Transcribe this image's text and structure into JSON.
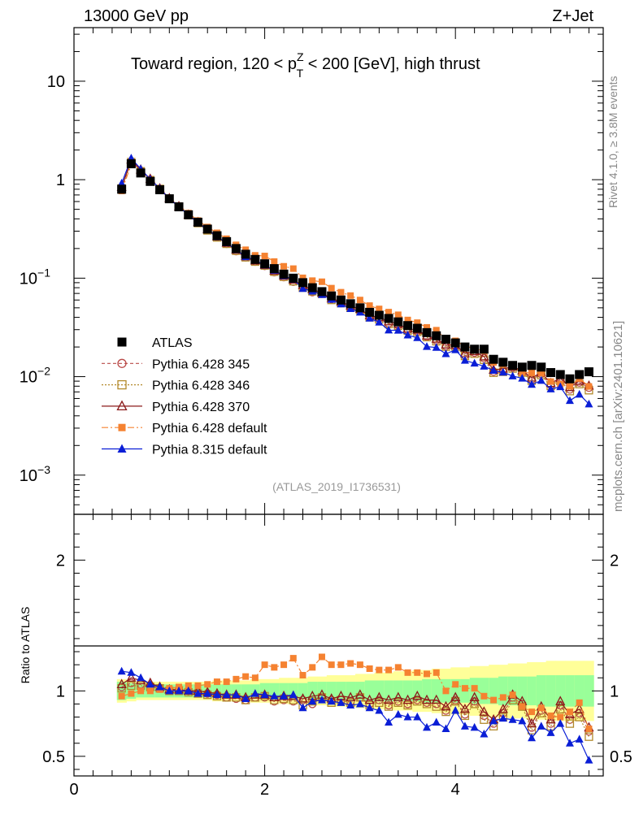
{
  "header": {
    "left": "13000 GeV pp",
    "right": "Z+Jet"
  },
  "title_parts": {
    "pre": "Toward region, 120 < p",
    "sup": "Z",
    "sub": "T",
    "post": " < 200 [GeV], high thrust"
  },
  "side_labels": {
    "rivet": "Rivet 4.1.0, ≥ 3.8M events",
    "mcplots": "mcplots.cern.ch [arXiv:2401.10621]"
  },
  "analysis_id": "(ATLAS_2019_I1736531)",
  "ratio_ylabel": "Ratio to ATLAS",
  "colors": {
    "atlas": "#000000",
    "p345": "#b94a48",
    "p346": "#b38a2c",
    "p370": "#8b1a1a",
    "p6def": "#f58231",
    "p8def": "#0a1ed6",
    "band_inner": "#99ff99",
    "band_outer": "#ffff99"
  },
  "chart_data": {
    "type": "line",
    "x": [
      0.5,
      0.6,
      0.7,
      0.8,
      0.9,
      1.0,
      1.1,
      1.2,
      1.3,
      1.4,
      1.5,
      1.6,
      1.7,
      1.8,
      1.9,
      2.0,
      2.1,
      2.2,
      2.3,
      2.4,
      2.5,
      2.6,
      2.7,
      2.8,
      2.9,
      3.0,
      3.1,
      3.2,
      3.3,
      3.4,
      3.5,
      3.6,
      3.7,
      3.8,
      3.9,
      4.0,
      4.1,
      4.2,
      4.3,
      4.4,
      4.5,
      4.6,
      4.7,
      4.8,
      4.9,
      5.0,
      5.1,
      5.2,
      5.3,
      5.4
    ],
    "xlim": [
      0,
      5.55
    ],
    "main": {
      "yscale": "log",
      "ylim": [
        0.0004,
        35
      ],
      "y_ticks": [
        {
          "v": 10,
          "label": "10"
        },
        {
          "v": 1,
          "label": "1"
        },
        {
          "v": 0.1,
          "label": "10",
          "exp": "−1"
        },
        {
          "v": 0.01,
          "label": "10",
          "exp": "−2"
        },
        {
          "v": 0.001,
          "label": "10",
          "exp": "−3"
        }
      ],
      "atlas": [
        0.8,
        1.45,
        1.17,
        0.96,
        0.79,
        0.64,
        0.53,
        0.44,
        0.37,
        0.315,
        0.27,
        0.235,
        0.2,
        0.175,
        0.155,
        0.14,
        0.125,
        0.11,
        0.1,
        0.09,
        0.08,
        0.073,
        0.066,
        0.06,
        0.055,
        0.05,
        0.045,
        0.042,
        0.039,
        0.036,
        0.033,
        0.031,
        0.028,
        0.026,
        0.024,
        0.022,
        0.02,
        0.019,
        0.019,
        0.015,
        0.014,
        0.013,
        0.0125,
        0.013,
        0.0125,
        0.011,
        0.0105,
        0.0095,
        0.0105,
        0.0112
      ]
    },
    "ratio": {
      "ylabel": "Ratio to ATLAS",
      "ylim": [
        0.35,
        2.35
      ],
      "y_ticks": [
        {
          "v": 0.5,
          "label": "0.5"
        },
        {
          "v": 1,
          "label": "1"
        },
        {
          "v": 2,
          "label": "2"
        }
      ],
      "band_inner": [
        0.07,
        0.06,
        0.05,
        0.05,
        0.05,
        0.05,
        0.05,
        0.05,
        0.05,
        0.05,
        0.05,
        0.05,
        0.05,
        0.05,
        0.05,
        0.06,
        0.06,
        0.06,
        0.06,
        0.06,
        0.07,
        0.07,
        0.07,
        0.07,
        0.07,
        0.07,
        0.08,
        0.08,
        0.08,
        0.08,
        0.08,
        0.08,
        0.09,
        0.09,
        0.09,
        0.09,
        0.09,
        0.1,
        0.1,
        0.1,
        0.11,
        0.11,
        0.11,
        0.11,
        0.12,
        0.12,
        0.12,
        0.12,
        0.12,
        0.12
      ],
      "band_outer": [
        0.09,
        0.08,
        0.07,
        0.07,
        0.07,
        0.07,
        0.07,
        0.07,
        0.07,
        0.07,
        0.08,
        0.08,
        0.08,
        0.08,
        0.09,
        0.09,
        0.09,
        0.1,
        0.1,
        0.1,
        0.11,
        0.11,
        0.12,
        0.12,
        0.12,
        0.13,
        0.13,
        0.14,
        0.14,
        0.15,
        0.15,
        0.16,
        0.16,
        0.17,
        0.17,
        0.18,
        0.18,
        0.19,
        0.19,
        0.2,
        0.2,
        0.21,
        0.21,
        0.22,
        0.22,
        0.23,
        0.23,
        0.23,
        0.23,
        0.23
      ]
    },
    "x_ticks": [
      0,
      2,
      4
    ],
    "series": [
      {
        "name": "Pythia 6.428 345",
        "key": "p345",
        "marker": "circle-open",
        "dash": "4,3",
        "ratio": [
          1.03,
          1.06,
          1.05,
          1.04,
          1.02,
          1.0,
          1.01,
          1.0,
          0.99,
          0.98,
          0.97,
          0.95,
          0.94,
          0.93,
          0.95,
          0.95,
          0.92,
          0.93,
          0.92,
          0.93,
          0.9,
          0.95,
          0.93,
          0.93,
          0.92,
          0.95,
          0.9,
          0.93,
          0.89,
          0.92,
          0.9,
          0.93,
          0.91,
          0.9,
          0.85,
          0.93,
          0.82,
          0.92,
          0.81,
          0.75,
          0.83,
          0.95,
          0.9,
          0.72,
          0.85,
          0.75,
          0.89,
          0.78,
          0.83,
          0.69
        ]
      },
      {
        "name": "Pythia 6.428 346",
        "key": "p346",
        "marker": "square-open",
        "dash": "2,2",
        "ratio": [
          1.02,
          1.04,
          1.04,
          1.03,
          1.02,
          1.0,
          1.0,
          0.99,
          0.98,
          0.97,
          0.96,
          0.95,
          0.95,
          0.93,
          0.95,
          0.96,
          0.93,
          0.94,
          0.93,
          0.89,
          0.92,
          0.95,
          0.91,
          0.93,
          0.91,
          0.95,
          0.89,
          0.91,
          0.88,
          0.91,
          0.89,
          0.92,
          0.9,
          0.88,
          0.84,
          0.92,
          0.81,
          0.9,
          0.78,
          0.73,
          0.8,
          0.93,
          0.88,
          0.7,
          0.83,
          0.73,
          0.86,
          0.75,
          0.8,
          0.65
        ]
      },
      {
        "name": "Pythia 6.428 370",
        "key": "p370",
        "marker": "triangle-open",
        "dash": "",
        "ratio": [
          1.05,
          1.1,
          1.08,
          1.06,
          1.03,
          1.01,
          1.01,
          1.0,
          1.0,
          0.99,
          0.98,
          0.97,
          0.97,
          0.95,
          0.97,
          0.97,
          0.95,
          0.96,
          0.96,
          0.94,
          0.96,
          0.97,
          0.94,
          0.96,
          0.95,
          0.97,
          0.93,
          0.95,
          0.93,
          0.95,
          0.93,
          0.96,
          0.93,
          0.93,
          0.88,
          0.95,
          0.86,
          0.95,
          0.84,
          0.78,
          0.86,
          0.97,
          0.92,
          0.75,
          0.88,
          0.78,
          0.92,
          0.82,
          0.86,
          0.72
        ]
      },
      {
        "name": "Pythia 6.428 default",
        "key": "p6def",
        "marker": "square-filled",
        "dash": "8,3,2,3",
        "ratio": [
          0.96,
          0.98,
          1.0,
          1.0,
          1.01,
          1.02,
          1.03,
          1.04,
          1.04,
          1.05,
          1.07,
          1.07,
          1.09,
          1.11,
          1.1,
          1.2,
          1.18,
          1.2,
          1.25,
          1.12,
          1.18,
          1.26,
          1.2,
          1.2,
          1.21,
          1.2,
          1.17,
          1.16,
          1.16,
          1.18,
          1.14,
          1.14,
          1.13,
          1.14,
          1.0,
          1.05,
          1.02,
          1.02,
          0.96,
          0.93,
          0.95,
          0.97,
          0.88,
          0.84,
          0.87,
          0.81,
          0.8,
          0.84,
          0.91,
          0.71
        ]
      },
      {
        "name": "Pythia 8.315 default",
        "key": "p8def",
        "marker": "triangle-filled",
        "dash": "",
        "ratio": [
          1.15,
          1.14,
          1.1,
          1.05,
          1.03,
          1.0,
          1.0,
          1.0,
          0.98,
          0.98,
          0.97,
          0.97,
          0.97,
          0.94,
          0.98,
          0.97,
          0.96,
          0.96,
          0.97,
          0.87,
          0.92,
          0.93,
          0.92,
          0.91,
          0.89,
          0.9,
          0.87,
          0.85,
          0.76,
          0.82,
          0.8,
          0.8,
          0.72,
          0.76,
          0.71,
          0.85,
          0.73,
          0.72,
          0.67,
          0.77,
          0.79,
          0.78,
          0.77,
          0.64,
          0.73,
          0.68,
          0.75,
          0.6,
          0.63,
          0.47
        ]
      },
      {
        "name": "ATLAS",
        "key": "atlas",
        "marker": "square-filled-black",
        "dash": ""
      }
    ],
    "legend_order": [
      "atlas",
      "p345",
      "p346",
      "p370",
      "p6def",
      "p8def"
    ],
    "legend_position": "lower-left of main panel"
  }
}
